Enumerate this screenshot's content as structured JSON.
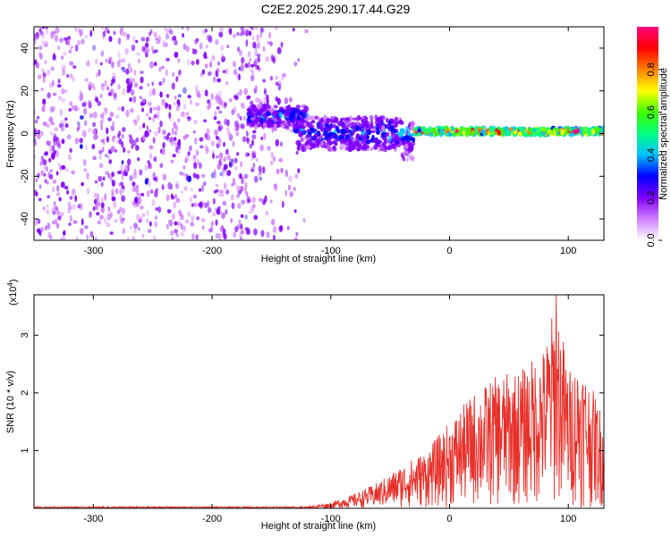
{
  "title": "C2E2.2025.290.17.44.G29",
  "chart_data": [
    {
      "type": "heatmap",
      "xlabel": "Height of straight line (km)",
      "ylabel": "Frequency (Hz)",
      "xlim": [
        -350,
        130
      ],
      "ylim": [
        -50,
        50
      ],
      "xticks": [
        -300,
        -200,
        -100,
        0,
        100
      ],
      "yticks": [
        -40,
        -20,
        0,
        20,
        40
      ],
      "colorbar": {
        "label": "Normalized spectral amplitude",
        "range": [
          0.0,
          1.0
        ],
        "ticks": [
          "0.0",
          "0.2",
          "0.4",
          "0.6",
          "0.8"
        ],
        "colormap": [
          "#ffffff",
          "#d080ff",
          "#8000ff",
          "#0000ff",
          "#00c0ff",
          "#00ff80",
          "#40ff00",
          "#ffff00",
          "#ff8000",
          "#ff0000",
          "#ff0080"
        ]
      },
      "regions": [
        {
          "x_range": [
            -350,
            -120
          ],
          "freq_range": [
            -50,
            50
          ],
          "amplitude": 0.15,
          "pattern": "broadband noise"
        },
        {
          "x_range": [
            -170,
            -120
          ],
          "freq_center": 8,
          "amplitude": 0.3
        },
        {
          "x_range": [
            -130,
            -30
          ],
          "freq_center": 0,
          "freq_width": 15,
          "amplitude": 0.3
        },
        {
          "x_range": [
            -30,
            130
          ],
          "freq_center": 1,
          "freq_width": 3,
          "amplitude": 0.85
        }
      ]
    },
    {
      "type": "line",
      "xlabel": "Height of straight line (km)",
      "ylabel": "SNR (10 * v/v)",
      "yscale_label": "(x10",
      "yscale_exponent": "4",
      "xlim": [
        -350,
        130
      ],
      "ylim": [
        0,
        3.7
      ],
      "xticks": [
        -300,
        -200,
        -100,
        0,
        100
      ],
      "yticks": [
        1,
        2,
        3
      ],
      "color": "#e8302a",
      "envelope": [
        {
          "x": -350,
          "y": 0.03
        },
        {
          "x": -120,
          "y": 0.03
        },
        {
          "x": -100,
          "y": 0.1
        },
        {
          "x": -80,
          "y": 0.25
        },
        {
          "x": -60,
          "y": 0.45
        },
        {
          "x": -40,
          "y": 0.75
        },
        {
          "x": -20,
          "y": 1.0
        },
        {
          "x": 0,
          "y": 1.5
        },
        {
          "x": 20,
          "y": 2.0
        },
        {
          "x": 40,
          "y": 2.3
        },
        {
          "x": 60,
          "y": 2.4
        },
        {
          "x": 80,
          "y": 2.8
        },
        {
          "x": 90,
          "y": 3.7
        },
        {
          "x": 100,
          "y": 2.4
        },
        {
          "x": 110,
          "y": 2.6
        },
        {
          "x": 120,
          "y": 2.1
        },
        {
          "x": 130,
          "y": 1.6
        }
      ]
    }
  ]
}
